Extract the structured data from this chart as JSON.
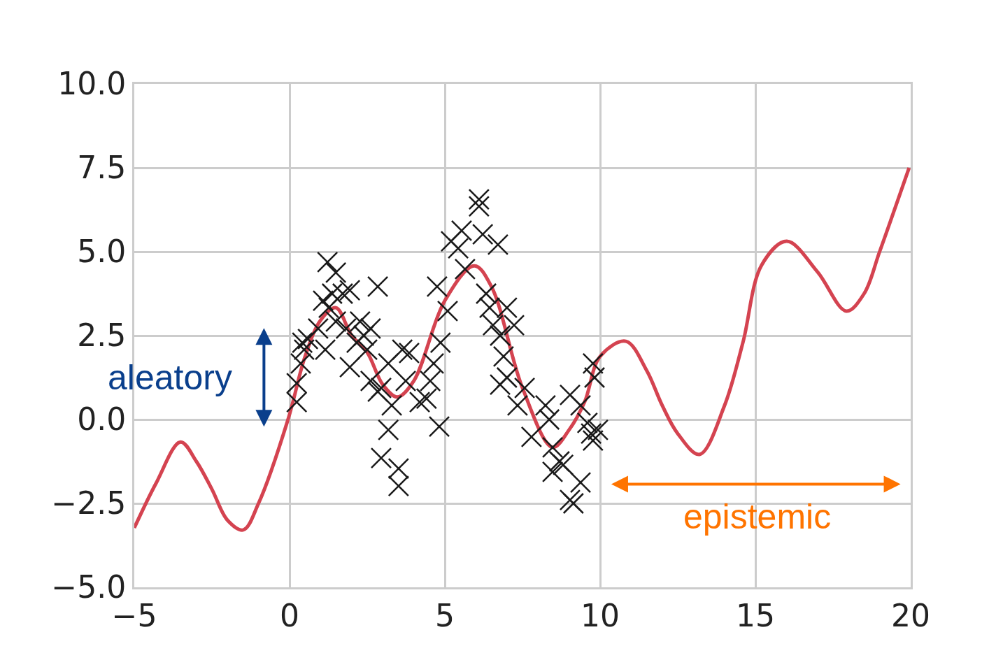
{
  "chart_data": {
    "type": "line",
    "xlim": [
      -5,
      20
    ],
    "ylim": [
      -5,
      10
    ],
    "xticks": [
      {
        "value": -5,
        "label": "−5"
      },
      0,
      5,
      10,
      15,
      20
    ],
    "yticks": [
      {
        "value": -5,
        "label": "−5.0"
      },
      {
        "value": -2.5,
        "label": "−2.5"
      },
      {
        "value": 0,
        "label": "0.0"
      },
      2.5,
      {
        "value": 5,
        "label": "5.0"
      },
      7.5,
      {
        "value": 10,
        "label": "10.0"
      }
    ],
    "grid": true,
    "annotations": [
      "aleatory",
      "epistemic"
    ],
    "series": [
      {
        "color": "#d44350",
        "marker": "none",
        "line_style": "solid",
        "x": [
          -5,
          -4.3,
          -3.51,
          -3,
          -2.5,
          -2,
          -1.49,
          -1,
          -0.05,
          0.5,
          1,
          1.49,
          2,
          2.5,
          3,
          3.47,
          4,
          5,
          5.95,
          6.5,
          7.5,
          8.47,
          9,
          9.5,
          10,
          10.83,
          11.5,
          12,
          12.5,
          13.2,
          14,
          14.6,
          15.2,
          16.01,
          17,
          17.93,
          18.5,
          19,
          19.95
        ],
        "values": [
          -3.23,
          -1.9,
          -0.67,
          -1.25,
          -2.08,
          -3.0,
          -3.29,
          -2.5,
          0,
          1.88,
          2.96,
          3.33,
          2.5,
          2.0,
          1.04,
          0.67,
          1.15,
          3.54,
          4.58,
          3.96,
          0.94,
          -0.83,
          -0.31,
          0.52,
          1.88,
          2.33,
          1.46,
          0.42,
          -0.42,
          -1.04,
          0.4,
          2.3,
          4.6,
          5.31,
          4.4,
          3.23,
          3.75,
          5.0,
          7.5
        ]
      },
      {
        "type": "scatter",
        "color": "#1a1a1a",
        "marker": "cross",
        "x": [
          0.23,
          0.23,
          0.41,
          0.47,
          0.36,
          0.59,
          0.92,
          1.22,
          1.49,
          1.08,
          1.26,
          1.37,
          1.71,
          1.94,
          1.15,
          1.49,
          1.82,
          1.94,
          2.16,
          2.27,
          2.39,
          2.61,
          2.5,
          2.84,
          2.61,
          2.95,
          2.84,
          3.18,
          3.29,
          3.18,
          2.95,
          3.51,
          3.51,
          3.63,
          3.85,
          3.74,
          4.19,
          4.41,
          4.53,
          4.82,
          4.64,
          4.86,
          4.75,
          5.09,
          5.2,
          5.43,
          5.54,
          5.65,
          6.1,
          6.1,
          6.22,
          6.33,
          6.44,
          6.71,
          6.55,
          6.78,
          6.89,
          7.0,
          7.0,
          7.23,
          6.78,
          7.34,
          7.57,
          7.79,
          8.24,
          8.36,
          8.47,
          8.69,
          8.81,
          8.47,
          9.03,
          9.37,
          9.14,
          9.03,
          9.37,
          9.59,
          9.77,
          9.82,
          9.71,
          9.93,
          9.77
        ],
        "values": [
          1.08,
          0.52,
          2.29,
          2.08,
          1.67,
          2.4,
          2.71,
          4.69,
          4.38,
          3.54,
          3.33,
          3.75,
          3.75,
          3.85,
          2.08,
          2.92,
          2.71,
          1.56,
          2.29,
          2.92,
          2.5,
          2.71,
          2.08,
          3.96,
          1.15,
          0.94,
          0.83,
          1.67,
          0.42,
          -0.31,
          -1.15,
          -1.46,
          -1.98,
          2.08,
          1.98,
          1.15,
          0.52,
          0.62,
          1.15,
          -0.21,
          1.67,
          2.29,
          3.96,
          3.23,
          5.31,
          5.1,
          5.63,
          4.48,
          6.56,
          6.35,
          5.52,
          3.75,
          3.33,
          5.21,
          2.81,
          2.5,
          1.88,
          1.25,
          3.33,
          2.81,
          1.04,
          0.42,
          0.94,
          -0.52,
          0.42,
          0,
          -0.83,
          -1.25,
          -1.35,
          -1.56,
          -2.4,
          -1.88,
          -2.5,
          0.73,
          0.42,
          -0.1,
          1.67,
          1.25,
          -0.42,
          -0.31,
          -0.63
        ]
      }
    ]
  }
}
